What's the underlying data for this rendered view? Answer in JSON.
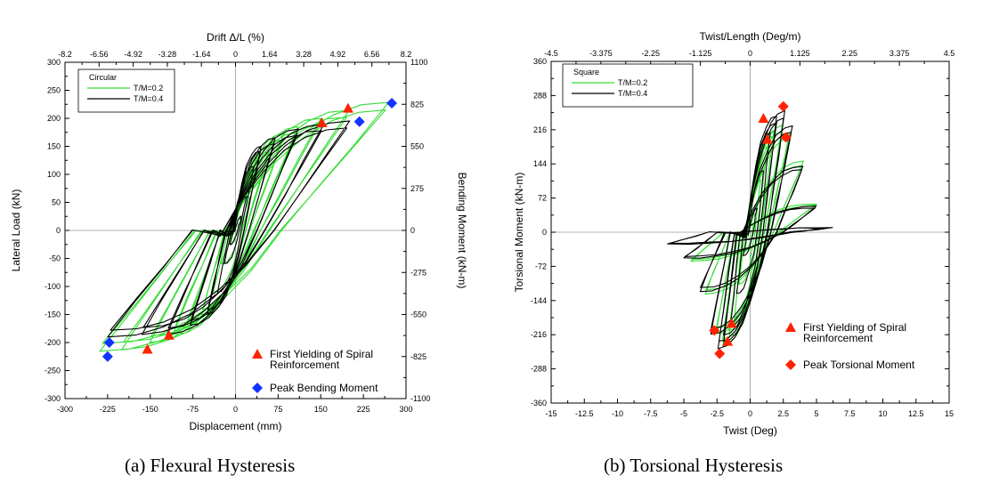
{
  "chart_data": [
    {
      "type": "line",
      "title": "",
      "caption": "(a) Flexural Hysteresis",
      "xlabel": "Displacement (mm)",
      "ylabel": "Lateral Load (kN)",
      "x2label": "Drift  Δ/L (%)",
      "y2label": "Bending Moment (kN-m)",
      "xlim": [
        -300,
        300
      ],
      "ylim": [
        -300,
        300
      ],
      "x2lim": [
        -8.2,
        8.2
      ],
      "y2lim": [
        -1100,
        1100
      ],
      "x_ticks": [
        -300,
        -225,
        -150,
        -75,
        0,
        75,
        150,
        225,
        300
      ],
      "y_ticks": [
        -300,
        -250,
        -200,
        -150,
        -100,
        -50,
        0,
        50,
        100,
        150,
        200,
        250,
        300
      ],
      "x2_ticks": [
        -8.2,
        -6.56,
        -4.92,
        -3.28,
        -1.64,
        0,
        1.64,
        3.28,
        4.92,
        6.56,
        8.2
      ],
      "y2_ticks": [
        -1100,
        -825,
        -550,
        -275,
        0,
        275,
        550,
        825,
        1100
      ],
      "grid": false,
      "legend_title": "Circular",
      "legend_position": "top-left",
      "series": [
        {
          "name": "T/M=0.2",
          "color": "#33dd33",
          "peaks": [
            [
              12,
              25
            ],
            [
              25,
              60
            ],
            [
              40,
              110
            ],
            [
              60,
              150
            ],
            [
              85,
              172
            ],
            [
              110,
              185
            ],
            [
              150,
              200
            ],
            [
              200,
              215
            ],
            [
              270,
              228
            ]
          ],
          "valleys": [
            [
              -12,
              -25
            ],
            [
              -25,
              -60
            ],
            [
              -40,
              -110
            ],
            [
              -60,
              -150
            ],
            [
              -85,
              -170
            ],
            [
              -110,
              -185
            ],
            [
              -150,
              -200
            ],
            [
              -200,
              -212
            ],
            [
              -238,
              -215
            ]
          ],
          "unload_frac": 0.3
        },
        {
          "name": "T/M=0.4",
          "color": "#000000",
          "peaks": [
            [
              10,
              25
            ],
            [
              20,
              60
            ],
            [
              32,
              115
            ],
            [
              45,
              150
            ],
            [
              70,
              165
            ],
            [
              110,
              180
            ],
            [
              155,
              190
            ],
            [
              200,
              195
            ]
          ],
          "valleys": [
            [
              -10,
              -25
            ],
            [
              -20,
              -60
            ],
            [
              -32,
              -110
            ],
            [
              -50,
              -150
            ],
            [
              -80,
              -170
            ],
            [
              -120,
              -185
            ],
            [
              -165,
              -185
            ],
            [
              -225,
              -190
            ]
          ],
          "unload_frac": 0.34
        }
      ],
      "markers": [
        {
          "name": "First Yielding of Spiral Reinforcement",
          "shape": "triangle",
          "color": "#ff2200",
          "points": [
            [
              152,
              192
            ],
            [
              198,
              218
            ],
            [
              -117,
              -187
            ],
            [
              -155,
              -212
            ]
          ]
        },
        {
          "name": "Peak Bending Moment",
          "shape": "diamond",
          "color": "#1133ff",
          "points": [
            [
              275,
              227
            ],
            [
              218,
              194
            ],
            [
              -222,
              -200
            ],
            [
              -225,
              -225
            ]
          ]
        }
      ],
      "marker_legend_position": "bottom-right"
    },
    {
      "type": "line",
      "title": "",
      "caption": "(b) Torsional Hysteresis",
      "xlabel": "Twist (Deg)",
      "ylabel": "Torsional Moment (kN-m)",
      "x2label": "Twist/Length (Deg/m)",
      "xlim": [
        -15,
        15
      ],
      "ylim": [
        -360,
        360
      ],
      "x2lim": [
        -4.5,
        4.5
      ],
      "x_ticks": [
        -15,
        -12.5,
        -10,
        -7.5,
        -5,
        -2.5,
        0,
        2.5,
        5,
        7.5,
        10,
        12.5,
        15
      ],
      "y_ticks": [
        -360,
        -288,
        -216,
        -144,
        -72,
        0,
        72,
        144,
        216,
        288,
        360
      ],
      "x2_ticks": [
        -4.5,
        -3.375,
        -2.25,
        -1.125,
        0,
        1.125,
        2.25,
        3.375,
        4.5
      ],
      "grid": false,
      "legend_title": "Square",
      "legend_position": "top-left",
      "series": [
        {
          "name": "T/M=0.2",
          "color": "#33dd33",
          "peaks": [
            [
              0.4,
              40
            ],
            [
              0.8,
              110
            ],
            [
              1.3,
              180
            ],
            [
              1.8,
              215
            ],
            [
              2.4,
              225
            ],
            [
              3,
              210
            ],
            [
              4,
              150
            ],
            [
              5,
              60
            ]
          ],
          "valleys": [
            [
              -0.4,
              -40
            ],
            [
              -0.8,
              -110
            ],
            [
              -1.2,
              -180
            ],
            [
              -1.6,
              -220
            ],
            [
              -2.1,
              -240
            ],
            [
              -2.6,
              -215
            ],
            [
              -3.4,
              -130
            ],
            [
              -4.5,
              -60
            ]
          ],
          "unload_frac": 0.45
        },
        {
          "name": "T/M=0.4",
          "color": "#000000",
          "peaks": [
            [
              0.5,
              50
            ],
            [
              1,
              130
            ],
            [
              1.5,
              210
            ],
            [
              2,
              245
            ],
            [
              2.6,
              255
            ],
            [
              3.2,
              225
            ],
            [
              4,
              140
            ],
            [
              5,
              55
            ],
            [
              6.2,
              10
            ]
          ],
          "valleys": [
            [
              -0.5,
              -50
            ],
            [
              -1,
              -130
            ],
            [
              -1.5,
              -200
            ],
            [
              -2,
              -230
            ],
            [
              -2.4,
              -245
            ],
            [
              -3,
              -215
            ],
            [
              -3.8,
              -125
            ],
            [
              -5,
              -55
            ],
            [
              -6.2,
              -25
            ]
          ],
          "unload_frac": 0.5
        }
      ],
      "markers": [
        {
          "name": "First Yielding of Spiral Reinforcement",
          "shape": "triangle",
          "color": "#ff2200",
          "points": [
            [
              1.0,
              240
            ],
            [
              1.3,
              196
            ],
            [
              -1.4,
              -192
            ],
            [
              -1.7,
              -230
            ]
          ]
        },
        {
          "name": "Peak Torsional Moment",
          "shape": "diamond",
          "color": "#ff2200",
          "points": [
            [
              2.5,
              265
            ],
            [
              2.7,
              200
            ],
            [
              -2.7,
              -207
            ],
            [
              -2.3,
              -256
            ]
          ]
        }
      ],
      "marker_legend_position": "bottom-right"
    }
  ]
}
